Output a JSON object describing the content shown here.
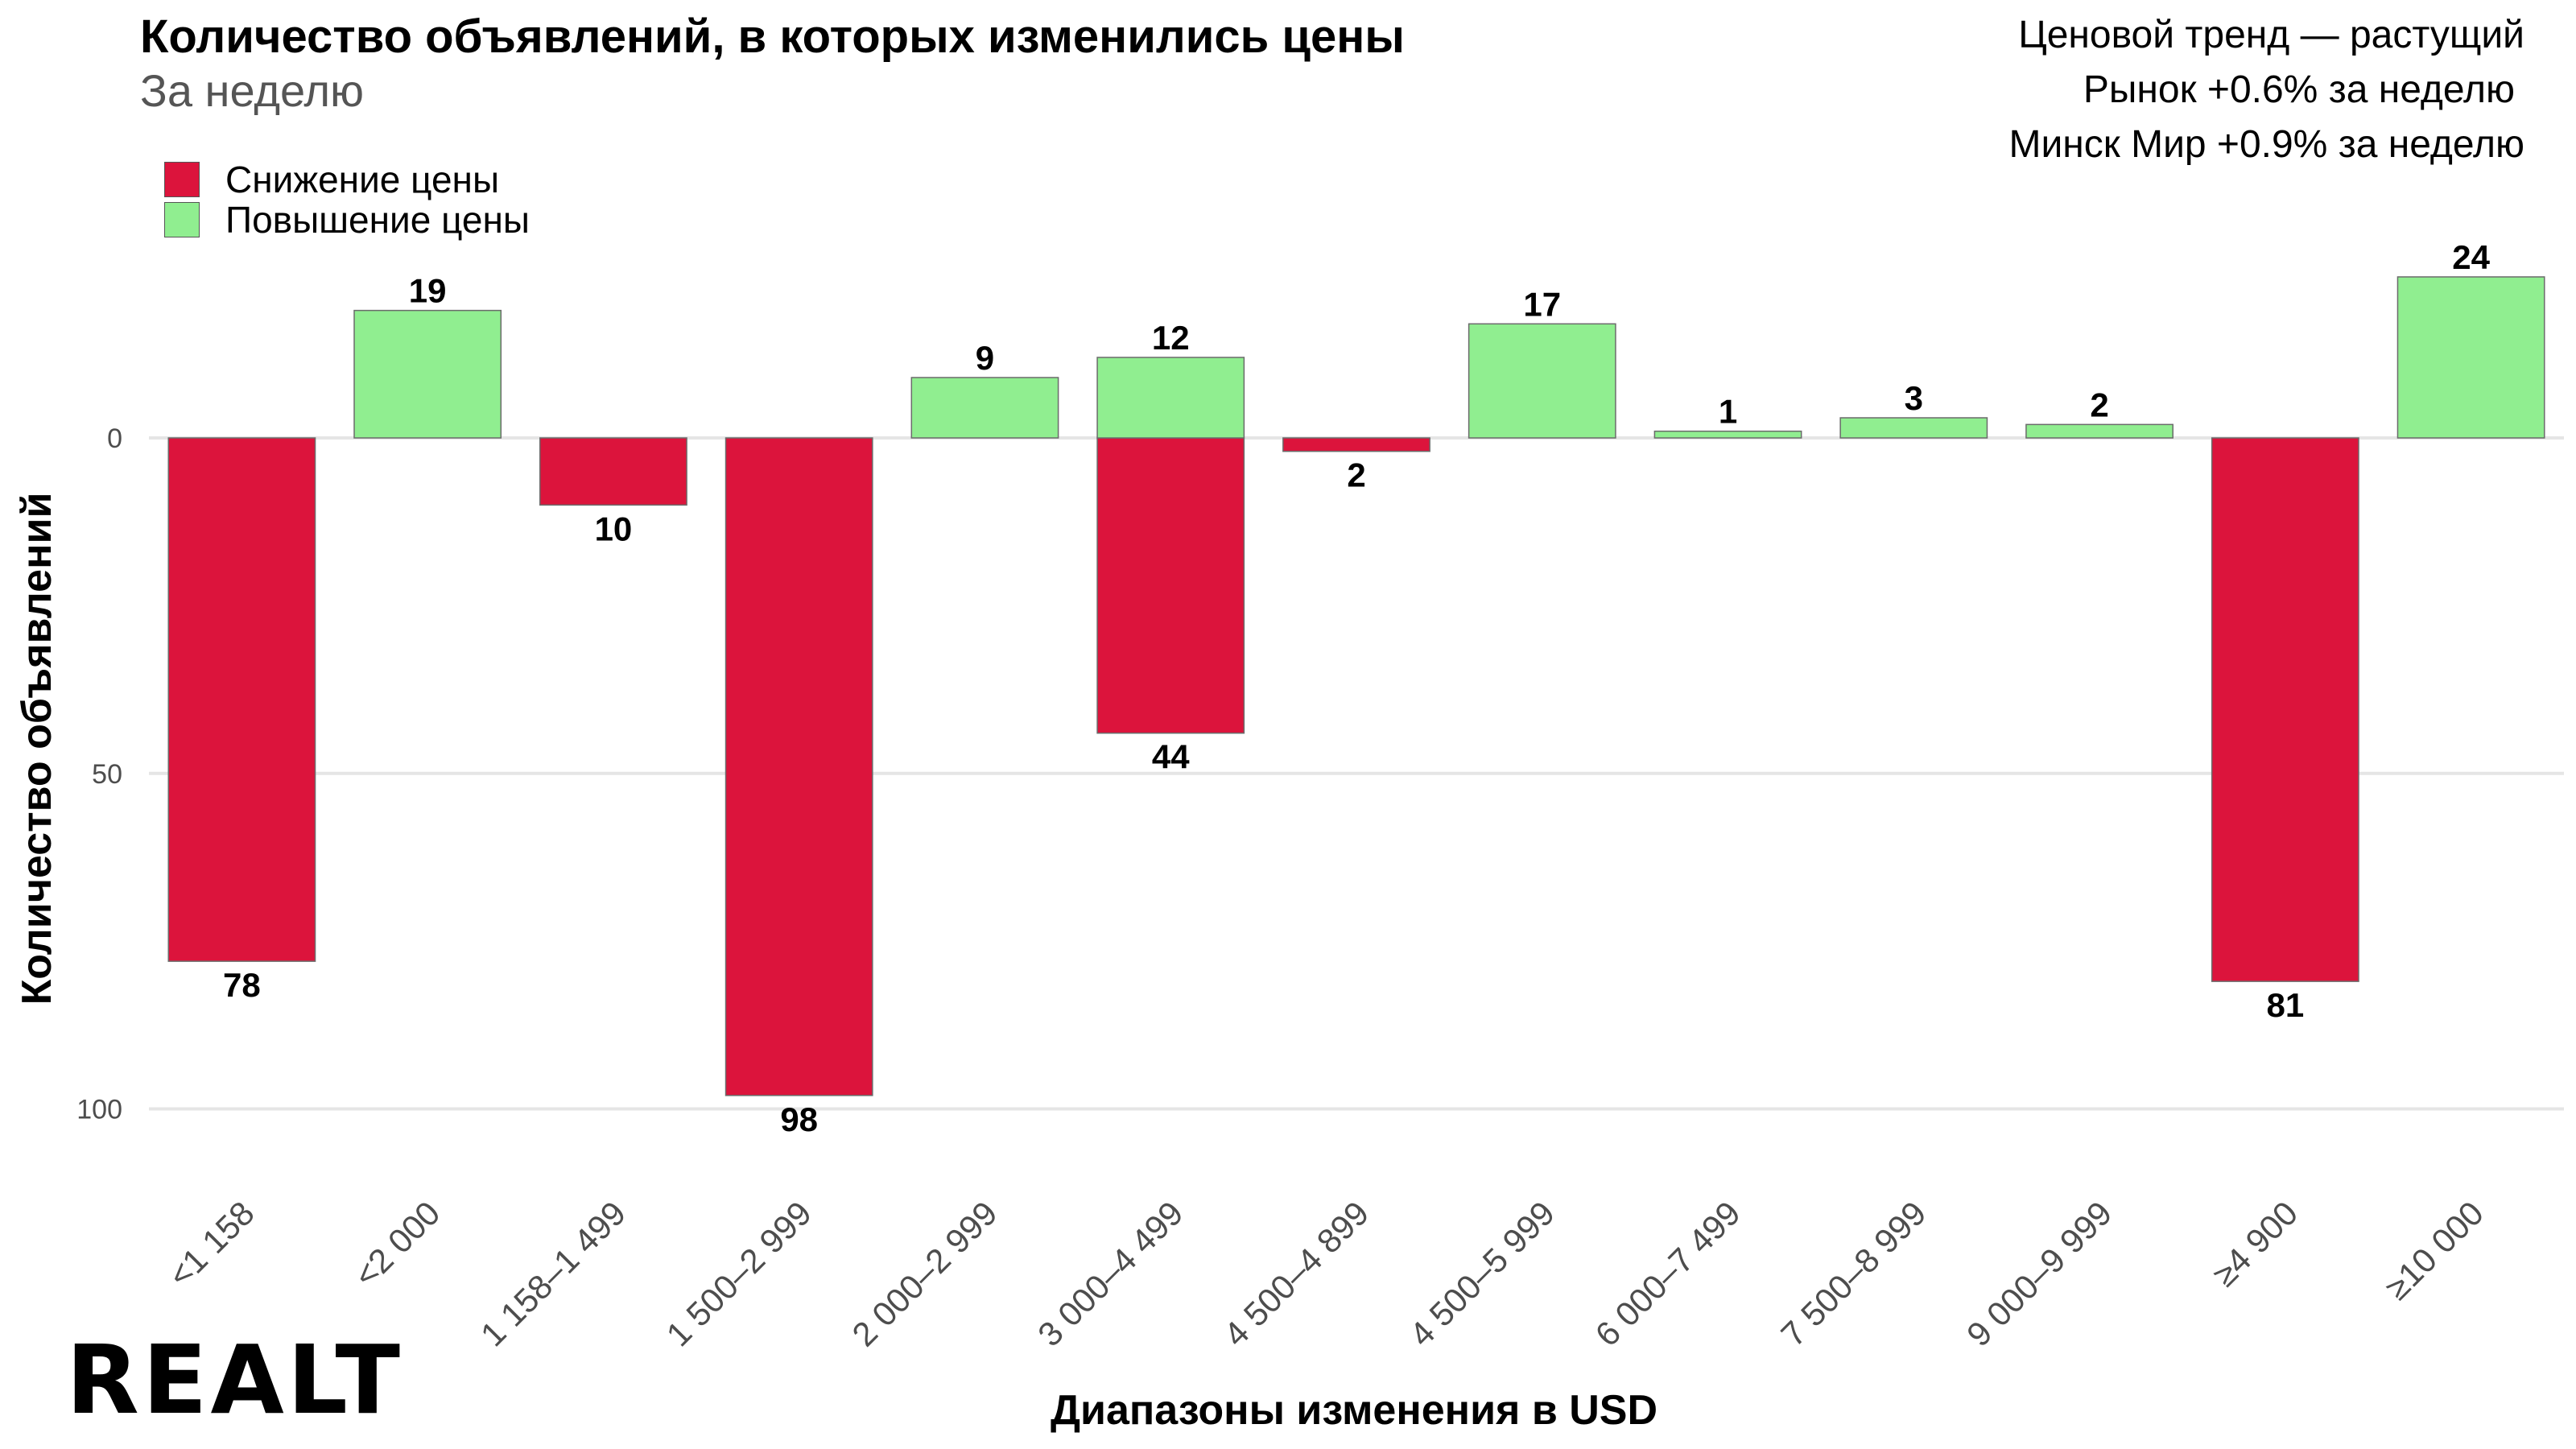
{
  "header": {
    "title": "Количество объявлений, в которых изменились цены",
    "subtitle": "За неделю"
  },
  "info": {
    "line1": "Ценовой тренд — растущий",
    "line2": "Рынок +0.6% за неделю",
    "line3": "Минск Мир +0.9% за неделю"
  },
  "brand": {
    "logo_text": "REALT"
  },
  "colors": {
    "decrease": "#DC143C",
    "increase": "#90EE90",
    "grid": "#E5E5E5"
  },
  "chart_data": {
    "type": "bar",
    "title": "Количество объявлений, в которых изменились цены",
    "subtitle": "За неделю",
    "xlabel": "Диапазоны изменения в USD",
    "ylabel": "Количество объявлений",
    "y_axis_reversed": true,
    "ylim": [
      -24,
      114
    ],
    "yticks": [
      0,
      50,
      100
    ],
    "grid": true,
    "legend_position": "top-left",
    "categories": [
      "<1 158",
      "<2 000",
      "1 158–1 499",
      "1 500–2 999",
      "2 000–2 999",
      "3 000–4 499",
      "4 500–4 899",
      "4 500–5 999",
      "6 000–7 499",
      "7 500–8 999",
      "9 000–9 999",
      "≥4 900",
      "≥10 000"
    ],
    "series": [
      {
        "name": "Снижение цены",
        "color": "#DC143C",
        "values": [
          78,
          0,
          10,
          98,
          0,
          44,
          2,
          0,
          0,
          0,
          0,
          81,
          0
        ]
      },
      {
        "name": "Повышение цены",
        "color": "#90EE90",
        "values": [
          0,
          19,
          0,
          0,
          9,
          12,
          0,
          17,
          1,
          3,
          2,
          0,
          24
        ]
      }
    ]
  }
}
